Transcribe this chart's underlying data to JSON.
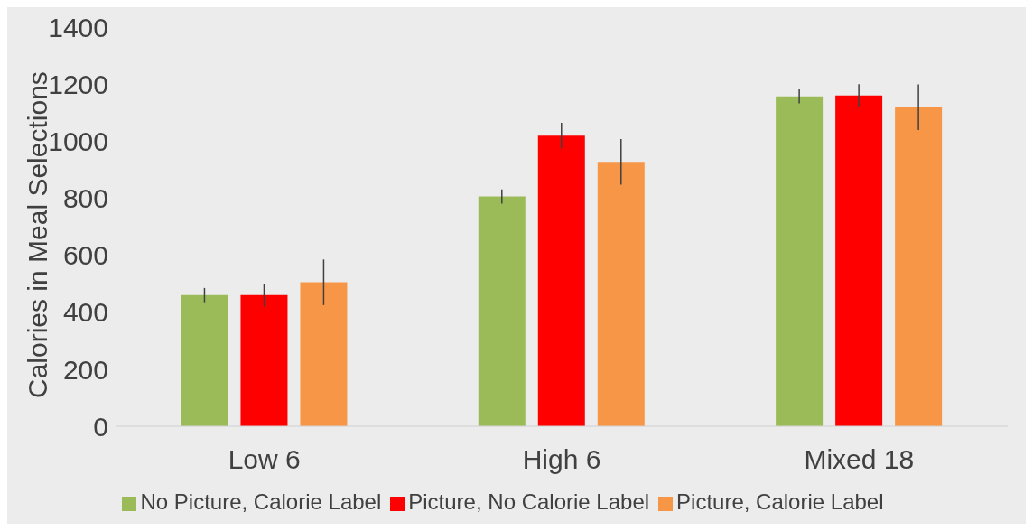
{
  "chart_data": {
    "type": "bar",
    "ylabel": "Calories in Meal Selections",
    "categories": [
      "Low 6",
      "High 6",
      "Mixed 18"
    ],
    "series": [
      {
        "name": "No Picture, Calorie Label",
        "color": "#9bbb59",
        "values": [
          460,
          806,
          1157
        ],
        "errors": [
          25,
          25,
          25
        ]
      },
      {
        "name": "Picture, No Calorie Label",
        "color": "#ff0000",
        "values": [
          460,
          1019,
          1160
        ],
        "errors": [
          40,
          45,
          40
        ]
      },
      {
        "name": "Picture, Calorie Label",
        "color": "#f79646",
        "values": [
          505,
          927,
          1119
        ],
        "errors": [
          80,
          80,
          80
        ]
      }
    ],
    "ylim": [
      0,
      1400
    ],
    "yticks": [
      0,
      200,
      400,
      600,
      800,
      1000,
      1200,
      1400
    ],
    "grid": false,
    "legend": "bottom"
  }
}
